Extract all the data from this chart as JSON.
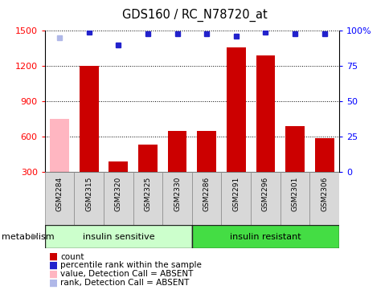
{
  "title": "GDS160 / RC_N78720_at",
  "samples": [
    "GSM2284",
    "GSM2315",
    "GSM2320",
    "GSM2325",
    "GSM2330",
    "GSM2286",
    "GSM2291",
    "GSM2296",
    "GSM2301",
    "GSM2306"
  ],
  "bar_values": [
    750,
    1205,
    390,
    530,
    650,
    650,
    1360,
    1290,
    690,
    590
  ],
  "bar_colors": [
    "#ffb6c1",
    "#cc0000",
    "#cc0000",
    "#cc0000",
    "#cc0000",
    "#cc0000",
    "#cc0000",
    "#cc0000",
    "#cc0000",
    "#cc0000"
  ],
  "rank_values": [
    95,
    99,
    90,
    98,
    98,
    98,
    96,
    99,
    98,
    98
  ],
  "rank_colors": [
    "#b0b8e8",
    "#2222cc",
    "#2222cc",
    "#2222cc",
    "#2222cc",
    "#2222cc",
    "#2222cc",
    "#2222cc",
    "#2222cc",
    "#2222cc"
  ],
  "ylim_left": [
    300,
    1500
  ],
  "ylim_right": [
    0,
    100
  ],
  "yticks_left": [
    300,
    600,
    900,
    1200,
    1500
  ],
  "yticks_right": [
    0,
    25,
    50,
    75,
    100
  ],
  "yticklabels_right": [
    "0",
    "25",
    "50",
    "75",
    "100%"
  ],
  "groups": [
    {
      "label": "insulin sensitive",
      "start": 0,
      "end": 5,
      "color": "#ccffcc"
    },
    {
      "label": "insulin resistant",
      "start": 5,
      "end": 10,
      "color": "#44dd44"
    }
  ],
  "group_row_label": "metabolism",
  "legend_items": [
    {
      "label": "count",
      "color": "#cc0000"
    },
    {
      "label": "percentile rank within the sample",
      "color": "#2222cc"
    },
    {
      "label": "value, Detection Call = ABSENT",
      "color": "#ffb6c1"
    },
    {
      "label": "rank, Detection Call = ABSENT",
      "color": "#b0b8e8"
    }
  ],
  "bar_width": 0.65,
  "rank_marker_size": 5
}
